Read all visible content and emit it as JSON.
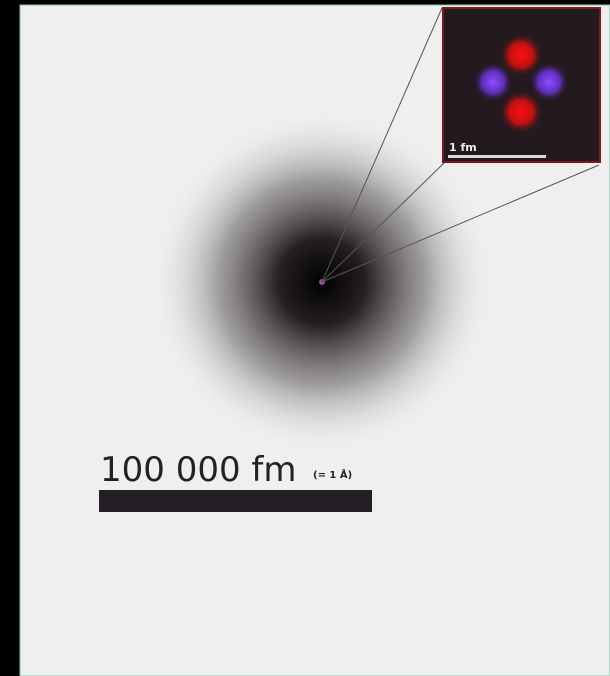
{
  "inset": {
    "scale_label": "1 fm"
  },
  "scale_bar": {
    "label": "100 000 fm",
    "note": "(= 1 Å)"
  }
}
